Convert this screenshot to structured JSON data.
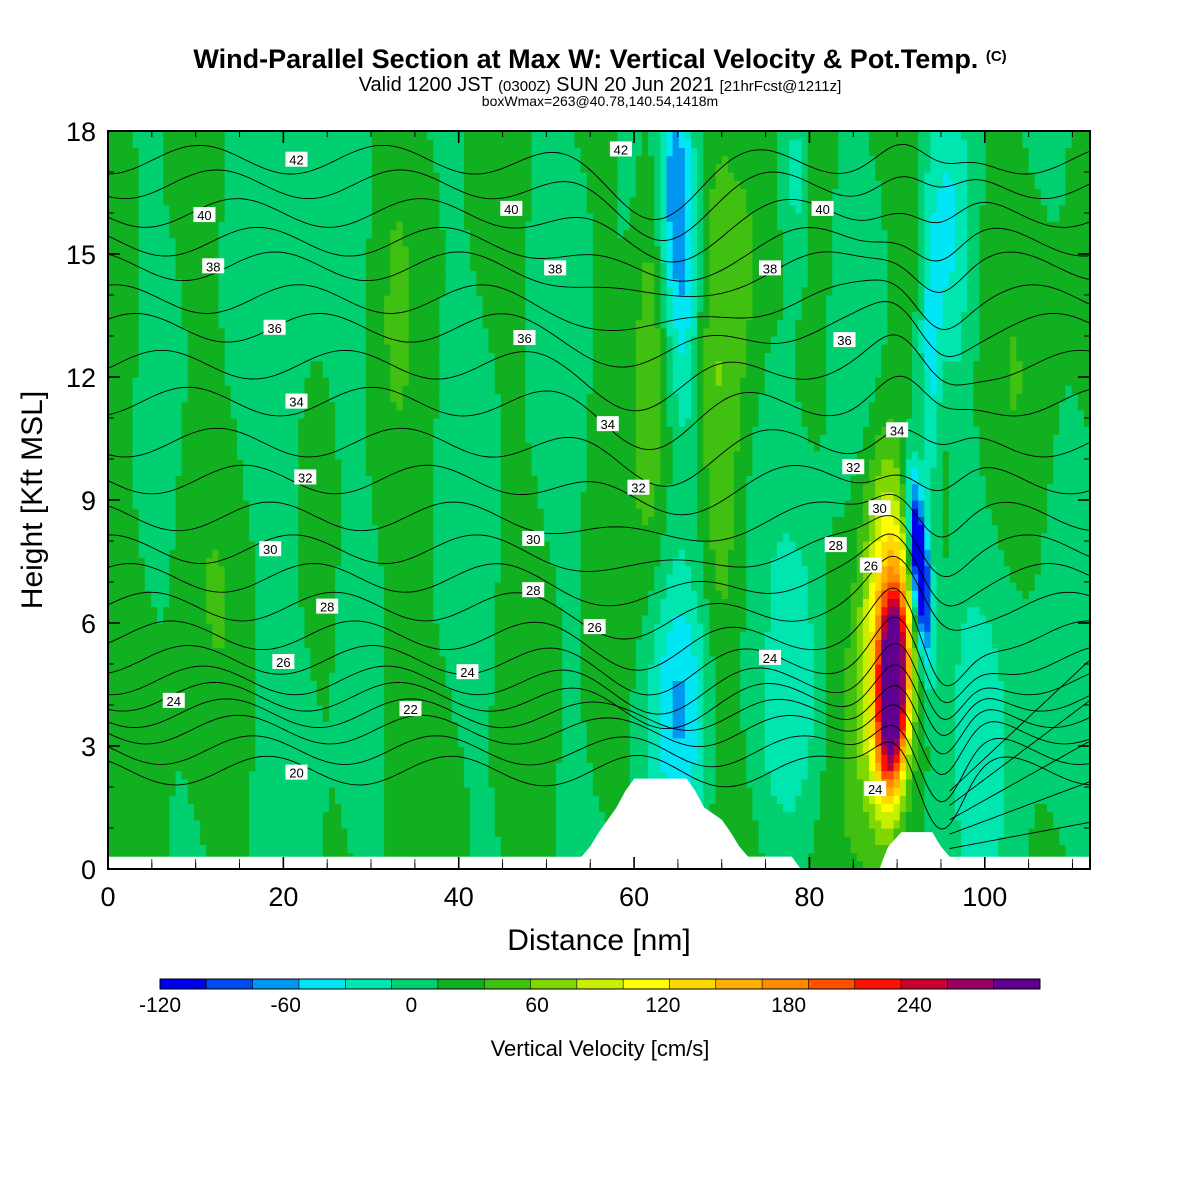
{
  "header": {
    "title": "Wind-Parallel Section at Max W: Vertical Velocity & Pot.Temp.",
    "copyright": "(C)",
    "valid_prefix": "Valid 1200 JST",
    "valid_zulu": "(0300Z)",
    "valid_date": "SUN 20 Jun 2021",
    "forecast": "[21hrFcst@1211z]",
    "boxinfo": "boxWmax=263@40.78,140.54,1418m"
  },
  "chart_data": {
    "type": "heatmap",
    "xlabel": "Distance [nm]",
    "ylabel": "Height [Kft MSL]",
    "xlim": [
      0,
      112
    ],
    "ylim": [
      0,
      18
    ],
    "x_ticks": [
      "0",
      "20",
      "40",
      "60",
      "80",
      "100"
    ],
    "y_ticks": [
      "0",
      "3",
      "6",
      "9",
      "12",
      "15",
      "18"
    ],
    "colorbar": {
      "label": "Vertical Velocity [cm/s]",
      "min": -120,
      "max": 280,
      "step": 20,
      "tick_labels": [
        "-120",
        "-60",
        "0",
        "60",
        "120",
        "180",
        "240"
      ],
      "tick_values": [
        -120,
        -60,
        0,
        60,
        120,
        180,
        240
      ],
      "colors": [
        "#0000ee",
        "#0048f0",
        "#0096f0",
        "#00e6f5",
        "#00e6b0",
        "#00d070",
        "#10b020",
        "#40c010",
        "#80d800",
        "#c8ee00",
        "#ffff00",
        "#ffd800",
        "#ffb000",
        "#ff8c00",
        "#ff5000",
        "#ff1000",
        "#c80030",
        "#960060",
        "#600090"
      ]
    },
    "contours": {
      "variable": "Potential Temperature",
      "labels": [
        {
          "text": "42",
          "x": 21.5,
          "y": 17.3
        },
        {
          "text": "42",
          "x": 58.5,
          "y": 17.55
        },
        {
          "text": "40",
          "x": 11,
          "y": 15.95
        },
        {
          "text": "40",
          "x": 46,
          "y": 16.1
        },
        {
          "text": "40",
          "x": 81.5,
          "y": 16.1
        },
        {
          "text": "38",
          "x": 12,
          "y": 14.7
        },
        {
          "text": "38",
          "x": 51,
          "y": 14.65
        },
        {
          "text": "38",
          "x": 75.5,
          "y": 14.65
        },
        {
          "text": "36",
          "x": 19,
          "y": 13.2
        },
        {
          "text": "36",
          "x": 47.5,
          "y": 12.95
        },
        {
          "text": "36",
          "x": 84,
          "y": 12.9
        },
        {
          "text": "34",
          "x": 21.5,
          "y": 11.4
        },
        {
          "text": "34",
          "x": 57,
          "y": 10.85
        },
        {
          "text": "34",
          "x": 90,
          "y": 10.7
        },
        {
          "text": "32",
          "x": 22.5,
          "y": 9.55
        },
        {
          "text": "32",
          "x": 60.5,
          "y": 9.3
        },
        {
          "text": "32",
          "x": 85,
          "y": 9.8
        },
        {
          "text": "30",
          "x": 18.5,
          "y": 7.8
        },
        {
          "text": "30",
          "x": 48.5,
          "y": 8.05
        },
        {
          "text": "30",
          "x": 88,
          "y": 8.8
        },
        {
          "text": "28",
          "x": 25,
          "y": 6.4
        },
        {
          "text": "28",
          "x": 48.5,
          "y": 6.8
        },
        {
          "text": "28",
          "x": 83,
          "y": 7.9
        },
        {
          "text": "26",
          "x": 20,
          "y": 5.05
        },
        {
          "text": "26",
          "x": 55.5,
          "y": 5.9
        },
        {
          "text": "26",
          "x": 87,
          "y": 7.4
        },
        {
          "text": "24",
          "x": 7.5,
          "y": 4.1
        },
        {
          "text": "24",
          "x": 41,
          "y": 4.8
        },
        {
          "text": "24",
          "x": 75.5,
          "y": 5.15
        },
        {
          "text": "24",
          "x": 87.5,
          "y": 1.95
        },
        {
          "text": "22",
          "x": 34.5,
          "y": 3.9
        },
        {
          "text": "20",
          "x": 21.5,
          "y": 2.35
        }
      ],
      "levels": [
        {
          "v": 20,
          "y": 2.4
        },
        {
          "v": 21,
          "y": 2.9
        },
        {
          "v": 22,
          "y": 3.4
        },
        {
          "v": 23,
          "y": 3.8
        },
        {
          "v": 24,
          "y": 4.2
        },
        {
          "v": 25,
          "y": 4.6
        },
        {
          "v": 26,
          "y": 5.1
        },
        {
          "v": 27,
          "y": 5.7
        },
        {
          "v": 28,
          "y": 6.4
        },
        {
          "v": 29,
          "y": 7.1
        },
        {
          "v": 30,
          "y": 7.8
        },
        {
          "v": 31,
          "y": 8.6
        },
        {
          "v": 32,
          "y": 9.5
        },
        {
          "v": 33,
          "y": 10.4
        },
        {
          "v": 34,
          "y": 11.4
        },
        {
          "v": 35,
          "y": 12.3
        },
        {
          "v": 36,
          "y": 13.2
        },
        {
          "v": 37,
          "y": 13.9
        },
        {
          "v": 38,
          "y": 14.7
        },
        {
          "v": 39,
          "y": 15.3
        },
        {
          "v": 40,
          "y": 16.0
        },
        {
          "v": 41,
          "y": 16.7
        },
        {
          "v": 42,
          "y": 17.3
        }
      ]
    },
    "terrain": [
      [
        54,
        0.3
      ],
      [
        55,
        0.55
      ],
      [
        56,
        0.9
      ],
      [
        57,
        1.2
      ],
      [
        58,
        1.5
      ],
      [
        59,
        1.9
      ],
      [
        60,
        2.2
      ],
      [
        66,
        2.2
      ],
      [
        67,
        1.9
      ],
      [
        68,
        1.5
      ],
      [
        70,
        1.2
      ],
      [
        71,
        0.9
      ],
      [
        72,
        0.55
      ],
      [
        73,
        0.3
      ],
      [
        78,
        0.3
      ],
      [
        79,
        0.0
      ],
      [
        88,
        0.0
      ],
      [
        88.5,
        0.3
      ],
      [
        89,
        0.55
      ],
      [
        90.5,
        0.9
      ],
      [
        94,
        0.9
      ],
      [
        95,
        0.55
      ],
      [
        96,
        0.3
      ],
      [
        112,
        0.3
      ]
    ]
  }
}
